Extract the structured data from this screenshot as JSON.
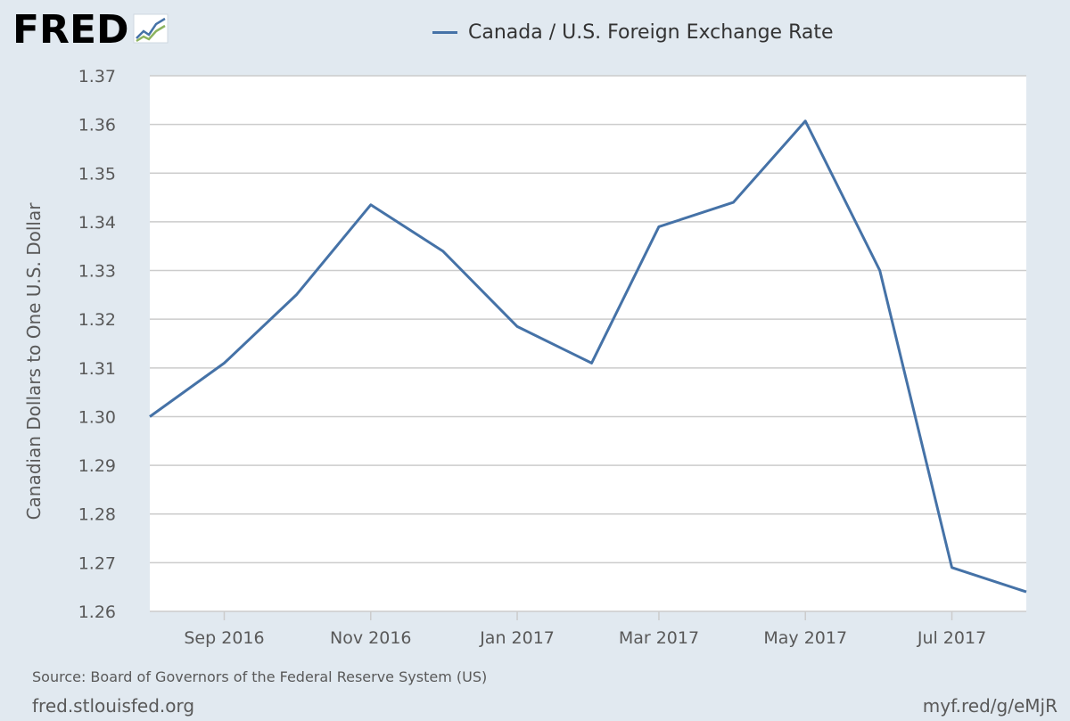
{
  "branding": {
    "logo_text": "FRED",
    "logo_icon": "line-chart-icon"
  },
  "chart_data": {
    "type": "line",
    "title": "",
    "xlabel": "",
    "ylabel": "Canadian Dollars to One U.S. Dollar",
    "ylim": [
      1.26,
      1.37
    ],
    "y_ticks": [
      "1.26",
      "1.27",
      "1.28",
      "1.29",
      "1.30",
      "1.31",
      "1.32",
      "1.33",
      "1.34",
      "1.35",
      "1.36",
      "1.37"
    ],
    "x_tick_labels": [
      "Sep 2016",
      "Nov 2016",
      "Jan 2017",
      "Mar 2017",
      "May 2017",
      "Jul 2017"
    ],
    "x_ticks": [
      "2016-09-01",
      "2016-11-01",
      "2017-01-01",
      "2017-03-01",
      "2017-05-01",
      "2017-07-01"
    ],
    "xlim": [
      "2016-08-01",
      "2017-08-01"
    ],
    "grid": "horizontal",
    "legend_position": "top-center",
    "series": [
      {
        "name": "Canada / U.S. Foreign Exchange Rate",
        "color": "#4572a7",
        "points": [
          {
            "x": "2016-08-01",
            "y": 1.3
          },
          {
            "x": "2016-09-01",
            "y": 1.311
          },
          {
            "x": "2016-10-01",
            "y": 1.325
          },
          {
            "x": "2016-11-01",
            "y": 1.3435
          },
          {
            "x": "2016-12-01",
            "y": 1.334
          },
          {
            "x": "2017-01-01",
            "y": 1.3185
          },
          {
            "x": "2017-02-01",
            "y": 1.311
          },
          {
            "x": "2017-03-01",
            "y": 1.339
          },
          {
            "x": "2017-04-01",
            "y": 1.344
          },
          {
            "x": "2017-05-01",
            "y": 1.3607
          },
          {
            "x": "2017-06-01",
            "y": 1.33
          },
          {
            "x": "2017-07-01",
            "y": 1.269
          },
          {
            "x": "2017-08-01",
            "y": 1.264
          }
        ]
      }
    ]
  },
  "footer": {
    "source": "Source: Board of Governors of the Federal Reserve System (US)",
    "site": "fred.stlouisfed.org",
    "short_link": "myf.red/g/eMjR"
  }
}
